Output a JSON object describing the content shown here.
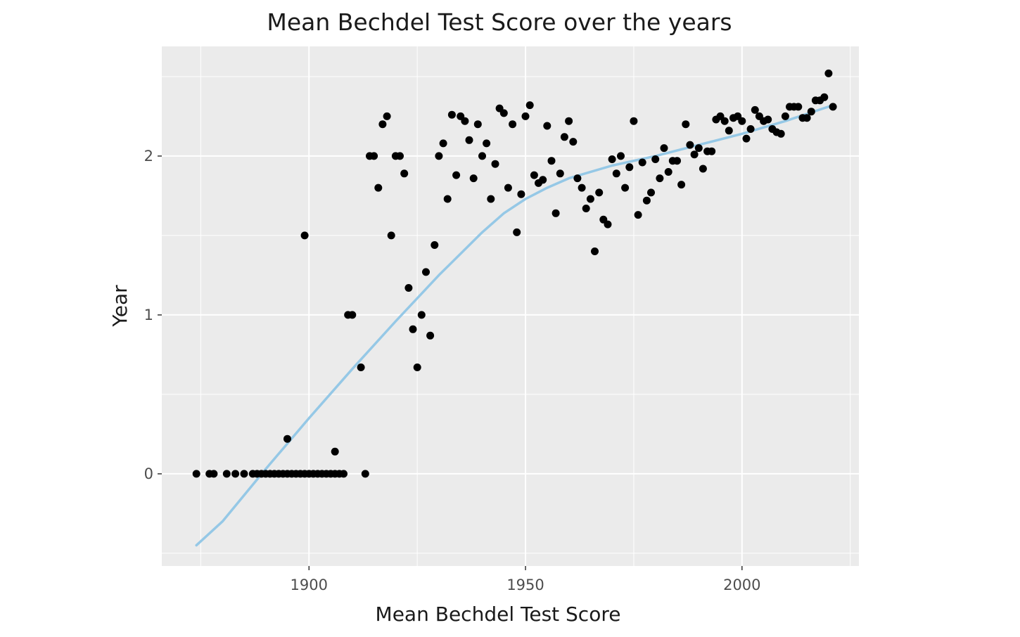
{
  "chart_data": {
    "type": "scatter",
    "title": "Mean Bechdel Test Score over the years",
    "xlabel": "Mean Bechdel Test Score",
    "ylabel": "Year",
    "xlim": [
      1866,
      2027
    ],
    "ylim": [
      -0.58,
      2.69
    ],
    "x_ticks": [
      1900,
      1950,
      2000
    ],
    "x_tick_labels": [
      "1900",
      "1950",
      "2000"
    ],
    "y_ticks": [
      0,
      1,
      2
    ],
    "y_tick_labels": [
      "0",
      "1",
      "2"
    ],
    "x_minor": [
      1875,
      1925,
      1975,
      2025
    ],
    "y_minor": [
      -0.5,
      0.5,
      1.5,
      2.5
    ],
    "grid": true,
    "legend": "none",
    "colors": {
      "panel": "#ebebeb",
      "grid": "#ffffff",
      "points": "#000000",
      "trend": "#95c8e6",
      "tick": "#333333"
    },
    "points": {
      "x": [
        1874,
        1877,
        1878,
        1881,
        1883,
        1885,
        1887,
        1888,
        1889,
        1890,
        1891,
        1892,
        1893,
        1894,
        1895,
        1896,
        1897,
        1898,
        1899,
        1900,
        1901,
        1902,
        1903,
        1904,
        1905,
        1906,
        1907,
        1908,
        1913,
        1895,
        1899,
        1906,
        1909,
        1910,
        1912,
        1914,
        1915,
        1916,
        1917,
        1918,
        1919,
        1920,
        1921,
        1922,
        1923,
        1924,
        1925,
        1926,
        1927,
        1928,
        1929,
        1930,
        1931,
        1932,
        1933,
        1934,
        1935,
        1936,
        1937,
        1938,
        1939,
        1940,
        1941,
        1942,
        1943,
        1944,
        1945,
        1946,
        1947,
        1948,
        1949,
        1950,
        1951,
        1952,
        1953,
        1954,
        1955,
        1956,
        1957,
        1958,
        1959,
        1960,
        1961,
        1962,
        1963,
        1964,
        1965,
        1966,
        1967,
        1968,
        1969,
        1970,
        1971,
        1972,
        1973,
        1974,
        1975,
        1976,
        1977,
        1978,
        1979,
        1980,
        1981,
        1982,
        1983,
        1984,
        1985,
        1986,
        1987,
        1988,
        1989,
        1990,
        1991,
        1992,
        1993,
        1994,
        1995,
        1996,
        1997,
        1998,
        1999,
        2000,
        2001,
        2002,
        2003,
        2004,
        2005,
        2006,
        2007,
        2008,
        2009,
        2010,
        2011,
        2012,
        2013,
        2014,
        2015,
        2016,
        2017,
        2018,
        2019,
        2020,
        2021
      ],
      "y": [
        0,
        0,
        0,
        0,
        0,
        0,
        0,
        0,
        0,
        0,
        0,
        0,
        0,
        0,
        0,
        0,
        0,
        0,
        0,
        0,
        0,
        0,
        0,
        0,
        0,
        0,
        0,
        0,
        0,
        0.22,
        1.5,
        0.14,
        1.0,
        1.0,
        0.67,
        2.0,
        2.0,
        1.8,
        2.2,
        2.25,
        1.5,
        2.0,
        2.0,
        1.89,
        1.17,
        0.91,
        0.67,
        1.0,
        1.27,
        0.87,
        1.44,
        2.0,
        2.08,
        1.73,
        2.26,
        1.88,
        2.25,
        2.22,
        2.1,
        1.86,
        2.2,
        2.0,
        2.08,
        1.73,
        1.95,
        2.3,
        2.27,
        1.8,
        2.2,
        1.52,
        1.76,
        2.25,
        2.32,
        1.88,
        1.83,
        1.85,
        2.19,
        1.97,
        1.64,
        1.89,
        2.12,
        2.22,
        2.09,
        1.86,
        1.8,
        1.67,
        1.73,
        1.4,
        1.77,
        1.6,
        1.57,
        1.98,
        1.89,
        2.0,
        1.8,
        1.93,
        2.22,
        1.63,
        1.96,
        1.72,
        1.77,
        1.98,
        1.86,
        2.05,
        1.9,
        1.97,
        1.97,
        1.82,
        2.2,
        2.07,
        2.01,
        2.05,
        1.92,
        2.03,
        2.03,
        2.23,
        2.25,
        2.22,
        2.16,
        2.24,
        2.25,
        2.22,
        2.11,
        2.17,
        2.29,
        2.25,
        2.22,
        2.23,
        2.17,
        2.15,
        2.14,
        2.25,
        2.31,
        2.31,
        2.31,
        2.24,
        2.24,
        2.28,
        2.35,
        2.35,
        2.37,
        2.52,
        2.31
      ]
    },
    "trend": {
      "x": [
        1874,
        1880,
        1890,
        1900,
        1910,
        1920,
        1930,
        1940,
        1945,
        1950,
        1955,
        1960,
        1970,
        1980,
        1990,
        2000,
        2010,
        2021
      ],
      "y": [
        -0.45,
        -0.3,
        0.03,
        0.35,
        0.66,
        0.96,
        1.25,
        1.52,
        1.64,
        1.73,
        1.8,
        1.86,
        1.94,
        2.0,
        2.07,
        2.14,
        2.22,
        2.32
      ]
    }
  }
}
